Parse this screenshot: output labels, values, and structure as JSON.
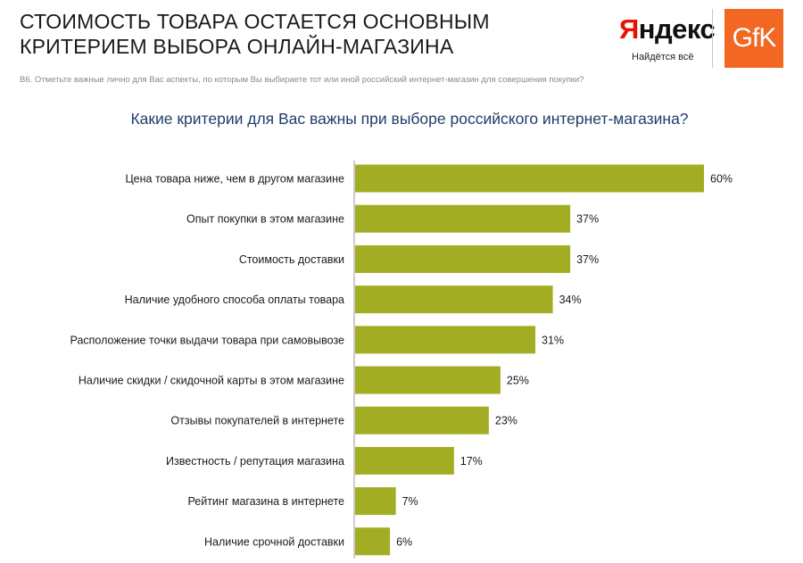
{
  "header": {
    "title_line1": "СТОИМОСТЬ ТОВАРА ОСТАЕТСЯ ОСНОВНЫМ",
    "title_line2": "КРИТЕРИЕМ ВЫБОРА ОНЛАЙН-МАГАЗИНА",
    "yandex_first_letter": "Я",
    "yandex_rest": "ндекс",
    "yandex_tagline": "Найдётся всё",
    "gfk_logo": "GfK"
  },
  "question_note": "B6. Отметьте важные лично для Вас аспекты, по которым Вы выбираете тот или иной российский интернет-магазин для совершения покупки?",
  "colors": {
    "bar": "#a3ad24",
    "title": "#1f3d6b",
    "axis": "#999999"
  },
  "chart_data": {
    "type": "bar",
    "orientation": "horizontal",
    "title": "Какие критерии для Вас важны при выборе российского интернет-магазина?",
    "xlim": [
      0,
      60
    ],
    "categories": [
      "Цена товара ниже, чем в другом магазине",
      "Опыт покупки в этом магазине",
      "Стоимость доставки",
      "Наличие удобного способа оплаты товара",
      "Расположение точки выдачи товара при самовывозе",
      "Наличие скидки / скидочной карты в этом магазине",
      "Отзывы покупателей в интернете",
      "Известность / репутация магазина",
      "Рейтинг магазина в интернете",
      "Наличие срочной доставки"
    ],
    "values": [
      60,
      37,
      37,
      34,
      31,
      25,
      23,
      17,
      7,
      6
    ],
    "value_labels": [
      "60%",
      "37%",
      "37%",
      "34%",
      "31%",
      "25%",
      "23%",
      "17%",
      "7%",
      "6%"
    ]
  }
}
